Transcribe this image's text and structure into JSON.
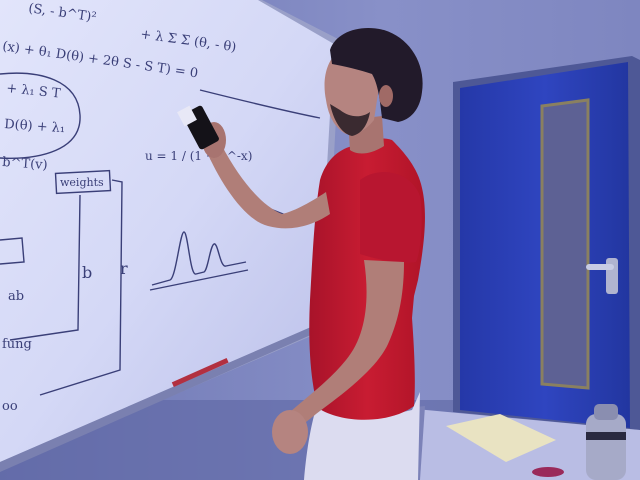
{
  "photo": {
    "colors": {
      "wall": "#7f88c4",
      "whiteboard": "#d4d8f6",
      "board_frame": "#9aa0c8",
      "ink": "#3a3f78",
      "door": "#2b3fb6",
      "door_frame": "#5a64a0",
      "door_window": "#6c6e9a",
      "shirt": "#c2182e",
      "skin": "#b07e78",
      "hair": "#221a2a",
      "pants": "#dcdcf0",
      "desk": "#b9bde4",
      "notepad": "#e9e3c2",
      "bottle": "#a6aac8"
    },
    "board_writing": {
      "lines": [
        "(S, - b^T)²",
        "+ λ Σ Σ (θ, - θ)",
        "(x) + θ₁ D(θ) + 2θ S - S T) = 0",
        "+ λ₁ S T",
        "D(θ) + λ₁",
        "b^T(v)",
        "weights",
        "u = 1 / (1 + e^-x)",
        "b",
        "r",
        "ab",
        "fung",
        "oo"
      ]
    }
  }
}
